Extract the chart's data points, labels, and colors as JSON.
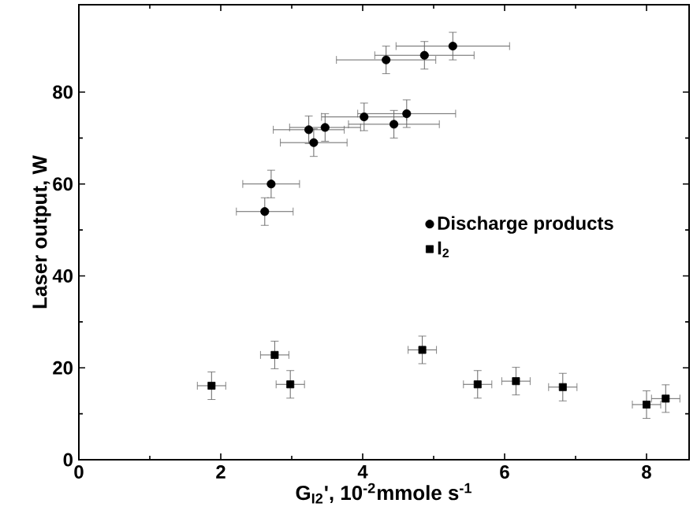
{
  "chart_data": {
    "type": "scatter",
    "xlabel": "G$_{I2}$', 10$^{-2}$mmole s$^{-1}$",
    "ylabel": "Laser output, W",
    "xlim": [
      0,
      8.6
    ],
    "ylim": [
      0,
      99
    ],
    "xticks": [
      0,
      2,
      4,
      6,
      8
    ],
    "yticks": [
      0,
      20,
      40,
      60,
      80
    ],
    "legend": "right",
    "grid": false,
    "series": [
      {
        "name": "Discharge products",
        "color": "#000000",
        "marker": "circle",
        "x": [
          2.62,
          2.71,
          3.31,
          3.24,
          3.47,
          4.02,
          4.44,
          4.62,
          4.33,
          4.87,
          5.27
        ],
        "values": [
          54,
          60,
          69,
          71.8,
          72.3,
          74.6,
          73,
          75.3,
          87,
          88,
          90
        ],
        "xerrors": [
          0.4,
          0.4,
          0.47,
          0.5,
          0.5,
          0.6,
          0.64,
          0.69,
          0.7,
          0.7,
          0.8
        ],
        "errors": [
          3,
          3,
          3,
          3,
          3,
          3,
          3,
          3,
          3,
          3,
          3
        ]
      },
      {
        "name": "I$_{2}$",
        "color": "#000000",
        "marker": "square",
        "x": [
          1.87,
          2.76,
          2.98,
          4.84,
          5.62,
          6.16,
          6.82,
          8.0,
          8.27
        ],
        "values": [
          16.1,
          22.8,
          16.4,
          23.9,
          16.4,
          17.1,
          15.8,
          12.0,
          13.3
        ],
        "xerrors": [
          0.2,
          0.2,
          0.2,
          0.2,
          0.2,
          0.2,
          0.2,
          0.2,
          0.2
        ],
        "errors": [
          3,
          3,
          3,
          3,
          3,
          3,
          3,
          3,
          3
        ]
      }
    ]
  }
}
